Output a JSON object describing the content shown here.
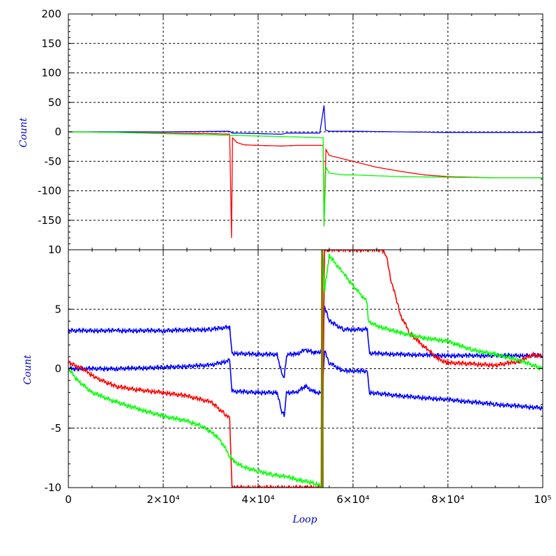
{
  "chart_data": [
    {
      "type": "line",
      "panel": "top",
      "xlabel": "",
      "ylabel": "Count",
      "xlim": [
        0,
        100000
      ],
      "ylim": [
        -200,
        200
      ],
      "x_ticks": [
        0,
        20000,
        40000,
        60000,
        80000,
        100000
      ],
      "y_ticks": [
        -150,
        -100,
        -50,
        0,
        50,
        100,
        150,
        200
      ],
      "y_tick_labels": [
        "-150",
        "-100",
        "-50",
        "0",
        "50",
        "100",
        "150",
        "200"
      ],
      "grid": true,
      "series": [
        {
          "color": "#0000ff",
          "x": [
            0,
            20000,
            34000,
            34500,
            40000,
            45000,
            46000,
            50000,
            53000,
            53900,
            54200,
            55000,
            60000,
            70000,
            80000,
            90000,
            100000
          ],
          "y": [
            0,
            0,
            1,
            -2,
            -3,
            -4,
            -2,
            -2,
            -2,
            45,
            3,
            1,
            1,
            0,
            -1,
            -1,
            -1
          ]
        },
        {
          "color": "#ff0000",
          "x": [
            0,
            10000,
            20000,
            30000,
            34000,
            34400,
            34600,
            35500,
            37000,
            40000,
            45000,
            48000,
            50000,
            53000,
            53700,
            53900,
            54300,
            55000,
            60000,
            65000,
            70000,
            75000,
            80000,
            90000,
            100000
          ],
          "y": [
            0,
            -1,
            -2,
            -3,
            -4,
            -180,
            -10,
            -18,
            -22,
            -23,
            -24,
            -23,
            -23,
            -23,
            -23,
            -160,
            -30,
            -40,
            -50,
            -60,
            -67,
            -73,
            -76,
            -78,
            -78
          ]
        },
        {
          "color": "#00ff00",
          "x": [
            0,
            10000,
            20000,
            30000,
            34000,
            40000,
            45000,
            50000,
            53000,
            53700,
            53900,
            54300,
            55000,
            58000,
            60000,
            70000,
            80000,
            90000,
            100000
          ],
          "y": [
            0,
            -1,
            -3,
            -5,
            -6,
            -7,
            -8,
            -9,
            -10,
            -10,
            -160,
            -60,
            -70,
            -73,
            -73,
            -76,
            -77,
            -78,
            -78
          ]
        }
      ]
    },
    {
      "type": "line",
      "panel": "bottom",
      "xlabel": "Loop",
      "ylabel": "Count",
      "xlim": [
        0,
        100000
      ],
      "ylim": [
        -10,
        10
      ],
      "x_ticks": [
        0,
        20000,
        40000,
        60000,
        80000,
        100000
      ],
      "x_tick_labels": [
        "0",
        "2×10⁴",
        "4×10⁴",
        "6×10⁴",
        "8×10⁴",
        "10⁵"
      ],
      "y_ticks": [
        -10,
        -5,
        0,
        5,
        10
      ],
      "y_tick_labels": [
        "-10",
        "-5",
        "0",
        "5",
        "10"
      ],
      "grid": true,
      "series": [
        {
          "color": "#0000ff",
          "x": [
            0,
            10000,
            20000,
            30000,
            34000,
            34500,
            40000,
            44000,
            45000,
            45500,
            46000,
            48000,
            50000,
            52000,
            53500,
            54000,
            55000,
            58000,
            63000,
            63500,
            70000,
            80000,
            90000,
            100000
          ],
          "y": [
            3.2,
            3.2,
            3.2,
            3.3,
            3.5,
            1.3,
            1.2,
            1.2,
            -0.5,
            -0.7,
            1.2,
            1.2,
            1.6,
            1.3,
            1.5,
            5.2,
            4.0,
            3.3,
            3.3,
            1.3,
            1.2,
            1.1,
            1.1,
            1.1
          ]
        },
        {
          "color": "#0000ff",
          "x": [
            0,
            10000,
            20000,
            30000,
            34000,
            34500,
            40000,
            44000,
            45000,
            45500,
            46000,
            48000,
            50000,
            52000,
            53500,
            54000,
            55000,
            58000,
            63000,
            63500,
            70000,
            80000,
            90000,
            100000
          ],
          "y": [
            0,
            0,
            0.1,
            0.3,
            0.7,
            -1.9,
            -2.0,
            -2.0,
            -3.7,
            -3.9,
            -2.0,
            -2.0,
            -1.5,
            -2.0,
            -2.0,
            1.5,
            0.5,
            -0.2,
            -0.2,
            -2.0,
            -2.3,
            -2.6,
            -3.0,
            -3.3
          ]
        },
        {
          "color": "#ff0000",
          "x": [
            0,
            3000,
            6000,
            10000,
            15000,
            20000,
            25000,
            30000,
            33000,
            34000,
            34500,
            53500,
            54000,
            66000,
            67000,
            68000,
            69000,
            70000,
            72000,
            74000,
            76000,
            78000,
            80000,
            85000,
            90000,
            95000,
            98000,
            100000
          ],
          "y": [
            0.5,
            0,
            -0.8,
            -1.5,
            -1.8,
            -2.0,
            -2.3,
            -2.8,
            -3.8,
            -4.2,
            -10,
            -10,
            10,
            10,
            9.5,
            7.5,
            6.0,
            4.5,
            3.0,
            2.2,
            1.5,
            0.8,
            0.5,
            0.4,
            0.3,
            0.6,
            1.2,
            1.0
          ]
        },
        {
          "color": "#00ff00",
          "x": [
            0,
            2000,
            5000,
            10000,
            15000,
            20000,
            25000,
            28000,
            30000,
            32000,
            34000,
            35000,
            37000,
            40000,
            43000,
            46000,
            49000,
            52000,
            53500,
            53600,
            54000,
            55000,
            58000,
            60000,
            63000,
            63200,
            65000,
            70000,
            75000,
            80000,
            82000,
            85000,
            90000,
            95000,
            100000
          ],
          "y": [
            0,
            -1.0,
            -2.0,
            -2.8,
            -3.4,
            -4.0,
            -4.4,
            -4.8,
            -5.3,
            -6.0,
            -7.3,
            -7.8,
            -8.3,
            -8.6,
            -8.9,
            -9.1,
            -9.4,
            -9.6,
            -10,
            10,
            6.5,
            9.5,
            8.0,
            7.0,
            5.6,
            4.0,
            3.6,
            3.0,
            2.6,
            2.3,
            2.0,
            1.6,
            1.2,
            0.7,
            0.0
          ]
        },
        {
          "color": "#808000",
          "x": [
            53300,
            53400,
            53500,
            53600,
            53700
          ],
          "y": [
            -10,
            10,
            -10,
            10,
            -10
          ]
        }
      ]
    }
  ]
}
